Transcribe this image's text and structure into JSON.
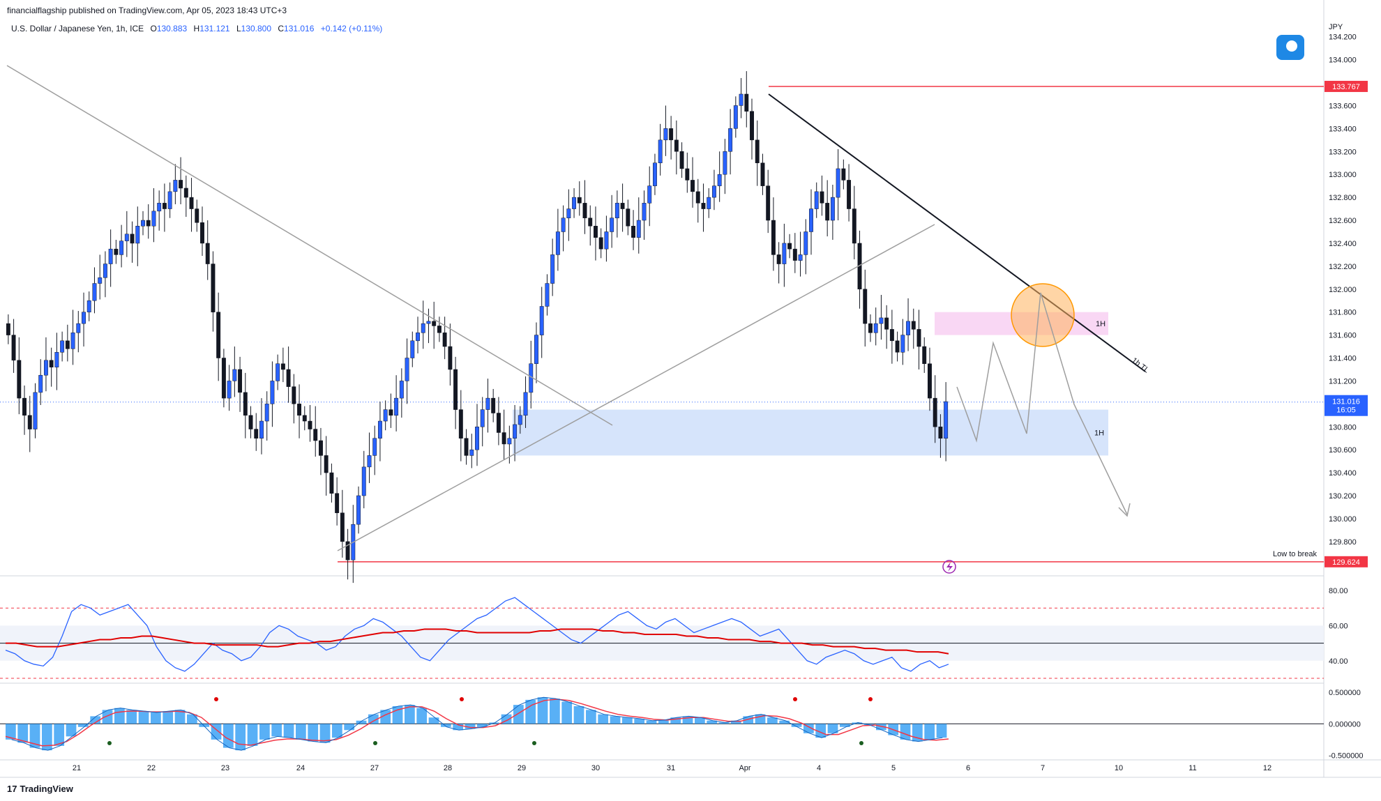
{
  "header": {
    "publisher_text": "financialflagship published on TradingView.com, Apr 05, 2023 18:43 UTC+3"
  },
  "legend": {
    "symbol": "U.S. Dollar / Japanese Yen, 1h, ICE",
    "open_label": "O",
    "open": "130.883",
    "high_label": "H",
    "high": "131.121",
    "low_label": "L",
    "low": "130.800",
    "close_label": "C",
    "close": "131.016",
    "change": "+0.142 (+0.11%)"
  },
  "footer": {
    "brand": "TradingView"
  },
  "colors": {
    "candle": "#131722",
    "up_candle": "#2962ff",
    "resistance": "#f23645",
    "trendline_main": "#131722",
    "trendline_grey": "#9e9e9e",
    "demand_zone": "#d6e4fb",
    "supply_zone": "#f9d7f4",
    "target_circle": "#ffb35c",
    "rsi": "#2962ff",
    "rsi_ma": "#e00000",
    "macd_hist": "#2196f3",
    "macd_signal": "#f23645"
  },
  "chart_data": [
    {
      "type": "candlestick",
      "title": "",
      "ylabel": "JPY",
      "ylim": [
        129.55,
        134.35
      ],
      "y_ticks": [
        "134.200",
        "134.000",
        "133.600",
        "133.400",
        "133.200",
        "133.000",
        "132.800",
        "132.600",
        "132.400",
        "132.200",
        "132.000",
        "131.800",
        "131.600",
        "131.400",
        "131.200",
        "130.800",
        "130.600",
        "130.400",
        "130.200",
        "130.000",
        "129.800"
      ],
      "x_ticks": [
        "21",
        "22",
        "23",
        "24",
        "27",
        "28",
        "29",
        "30",
        "31",
        "Apr",
        "4",
        "5",
        "6",
        "7",
        "10",
        "11",
        "12"
      ],
      "last_price": "131.016",
      "countdown": "16:05",
      "levels": [
        {
          "name": "resistance",
          "value": 133.767,
          "label": "133.767"
        },
        {
          "name": "low-to-break",
          "value": 129.624,
          "label": "129.624",
          "text": "Low to break"
        }
      ],
      "zones": [
        {
          "name": "demand-zone",
          "from": 130.55,
          "to": 130.95,
          "label": "1H"
        },
        {
          "name": "supply-zone",
          "from": 131.6,
          "to": 131.8,
          "label": "1H"
        }
      ],
      "annotations": [
        {
          "name": "trendline-label",
          "text": "1h TL"
        }
      ],
      "series_close": [
        131.6,
        131.38,
        131.05,
        130.9,
        130.78,
        131.1,
        131.25,
        131.38,
        131.32,
        131.45,
        131.55,
        131.48,
        131.62,
        131.7,
        131.8,
        131.9,
        132.05,
        132.1,
        132.22,
        132.35,
        132.3,
        132.42,
        132.48,
        132.4,
        132.55,
        132.6,
        132.55,
        132.68,
        132.75,
        132.7,
        132.85,
        132.95,
        132.88,
        132.8,
        132.7,
        132.58,
        132.4,
        132.22,
        131.8,
        131.4,
        131.05,
        131.2,
        131.3,
        131.1,
        130.9,
        130.78,
        130.7,
        130.85,
        131.0,
        131.2,
        131.35,
        131.3,
        131.15,
        131.0,
        130.9,
        130.85,
        130.78,
        130.68,
        130.55,
        130.4,
        130.22,
        130.05,
        129.8,
        129.64,
        129.95,
        130.2,
        130.45,
        130.55,
        130.7,
        130.85,
        130.95,
        130.9,
        131.05,
        131.2,
        131.4,
        131.55,
        131.62,
        131.7,
        131.72,
        131.68,
        131.62,
        131.5,
        131.3,
        130.95,
        130.7,
        130.55,
        130.6,
        130.8,
        130.95,
        131.05,
        130.92,
        130.75,
        130.65,
        130.7,
        130.82,
        130.9,
        131.1,
        131.35,
        131.6,
        131.85,
        132.05,
        132.3,
        132.5,
        132.62,
        132.7,
        132.8,
        132.75,
        132.62,
        132.55,
        132.45,
        132.35,
        132.5,
        132.62,
        132.75,
        132.7,
        132.55,
        132.45,
        132.6,
        132.75,
        132.9,
        133.1,
        133.3,
        133.4,
        133.3,
        133.2,
        133.05,
        132.95,
        132.85,
        132.75,
        132.7,
        132.8,
        132.9,
        133.0,
        133.2,
        133.4,
        133.6,
        133.7,
        133.55,
        133.3,
        133.1,
        132.9,
        132.6,
        132.3,
        132.22,
        132.4,
        132.35,
        132.25,
        132.3,
        132.5,
        132.7,
        132.85,
        132.75,
        132.6,
        132.8,
        133.05,
        132.95,
        132.7,
        132.4,
        132.0,
        131.7,
        131.62,
        131.7,
        131.75,
        131.65,
        131.55,
        131.45,
        131.6,
        131.72,
        131.65,
        131.5,
        131.35,
        131.05,
        130.8,
        130.7,
        131.02
      ]
    },
    {
      "type": "line",
      "title": "",
      "ylim": [
        28,
        82
      ],
      "y_ticks": [
        "80.00",
        "60.00",
        "40.00"
      ],
      "reference_lines": [
        70,
        50,
        30
      ],
      "band": [
        40,
        60
      ],
      "series": [
        {
          "name": "",
          "values": [
            46,
            44,
            40,
            38,
            37,
            42,
            54,
            68,
            72,
            70,
            66,
            68,
            70,
            72,
            66,
            60,
            48,
            40,
            36,
            34,
            38,
            44,
            50,
            46,
            44,
            40,
            42,
            48,
            56,
            60,
            58,
            54,
            52,
            50,
            46,
            48,
            54,
            58,
            60,
            64,
            62,
            58,
            54,
            48,
            42,
            40,
            46,
            52,
            56,
            60,
            64,
            66,
            70,
            74,
            76,
            72,
            68,
            64,
            60,
            56,
            52,
            50,
            54,
            58,
            62,
            66,
            68,
            64,
            60,
            58,
            62,
            64,
            60,
            56,
            58,
            60,
            62,
            64,
            62,
            58,
            54,
            56,
            58,
            52,
            46,
            40,
            38,
            42,
            44,
            46,
            44,
            40,
            38,
            40,
            42,
            36,
            34,
            38,
            40,
            36,
            38
          ]
        },
        {
          "name": "",
          "values": [
            50,
            50,
            49,
            48,
            48,
            48,
            49,
            50,
            51,
            52,
            52,
            53,
            53,
            54,
            54,
            53,
            52,
            51,
            50,
            50,
            49,
            49,
            49,
            49,
            49,
            48,
            48,
            49,
            50,
            50,
            51,
            51,
            52,
            53,
            54,
            55,
            56,
            56,
            57,
            57,
            58,
            58,
            58,
            57,
            57,
            56,
            56,
            56,
            56,
            56,
            56,
            57,
            57,
            58,
            58,
            58,
            58,
            57,
            57,
            56,
            56,
            55,
            55,
            55,
            55,
            54,
            54,
            53,
            53,
            52,
            52,
            52,
            51,
            51,
            50,
            50,
            50,
            49,
            49,
            48,
            48,
            48,
            47,
            47,
            46,
            46,
            46,
            45,
            45,
            45,
            44
          ]
        }
      ]
    },
    {
      "type": "bar",
      "title": "",
      "ylim": [
        -0.55,
        0.6
      ],
      "y_ticks": [
        "0.500000",
        "0.000000",
        "-0.500000"
      ],
      "series": [
        {
          "name": "",
          "values": [
            -0.25,
            -0.3,
            -0.38,
            -0.42,
            -0.35,
            -0.2,
            -0.05,
            0.12,
            0.22,
            0.25,
            0.22,
            0.2,
            0.18,
            0.2,
            0.22,
            0.15,
            -0.05,
            -0.25,
            -0.38,
            -0.42,
            -0.35,
            -0.25,
            -0.2,
            -0.22,
            -0.25,
            -0.28,
            -0.3,
            -0.22,
            -0.1,
            0.05,
            0.15,
            0.22,
            0.28,
            0.3,
            0.25,
            0.1,
            -0.05,
            -0.1,
            -0.08,
            -0.05,
            0.02,
            0.15,
            0.3,
            0.38,
            0.42,
            0.4,
            0.35,
            0.28,
            0.22,
            0.15,
            0.12,
            0.1,
            0.08,
            0.05,
            0.06,
            0.1,
            0.12,
            0.1,
            0.05,
            0.02,
            0.05,
            0.12,
            0.15,
            0.1,
            0.05,
            -0.05,
            -0.15,
            -0.22,
            -0.15,
            -0.05,
            0.02,
            -0.02,
            -0.1,
            -0.18,
            -0.25,
            -0.28,
            -0.25,
            -0.22
          ]
        },
        {
          "name": "",
          "values": [
            -0.2,
            -0.25,
            -0.3,
            -0.35,
            -0.34,
            -0.28,
            -0.16,
            -0.02,
            0.1,
            0.18,
            0.2,
            0.2,
            0.19,
            0.19,
            0.2,
            0.18,
            0.1,
            -0.06,
            -0.22,
            -0.32,
            -0.34,
            -0.3,
            -0.26,
            -0.24,
            -0.24,
            -0.26,
            -0.27,
            -0.25,
            -0.18,
            -0.08,
            0.04,
            0.14,
            0.22,
            0.27,
            0.27,
            0.2,
            0.08,
            -0.02,
            -0.06,
            -0.06,
            -0.03,
            0.06,
            0.18,
            0.3,
            0.37,
            0.39,
            0.37,
            0.32,
            0.26,
            0.2,
            0.15,
            0.12,
            0.1,
            0.07,
            0.06,
            0.08,
            0.1,
            0.1,
            0.07,
            0.04,
            0.04,
            0.09,
            0.13,
            0.12,
            0.08,
            0.01,
            -0.09,
            -0.17,
            -0.17,
            -0.1,
            -0.03,
            -0.02,
            -0.06,
            -0.13,
            -0.2,
            -0.25,
            -0.26,
            -0.24
          ]
        }
      ],
      "bullish_dots": 5,
      "bearish_dots": 4
    }
  ]
}
